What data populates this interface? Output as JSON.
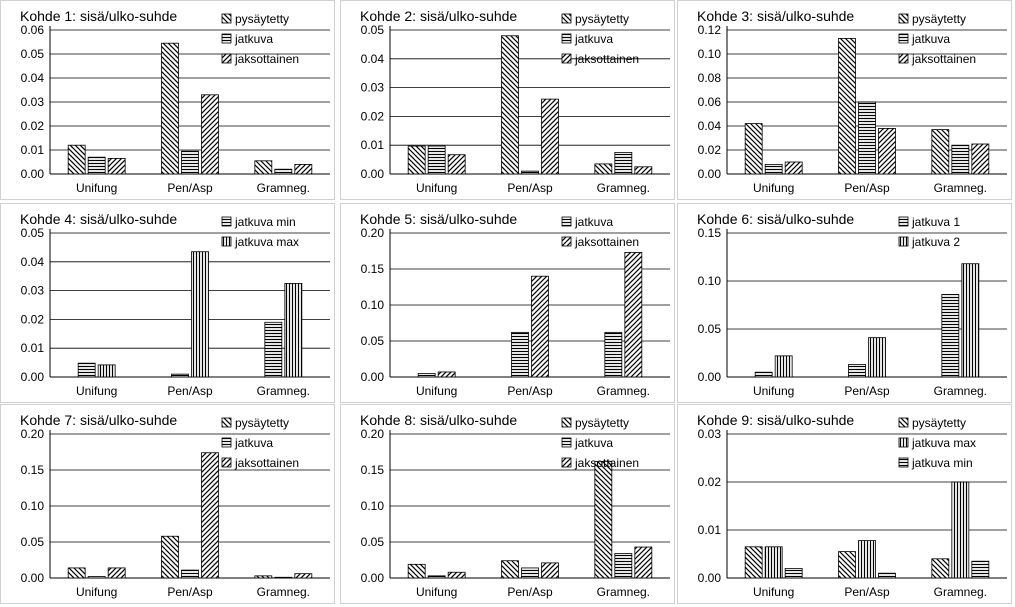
{
  "chart_data": [
    {
      "type": "bar",
      "title": "Kohde 1: sisä/ulko-suhde",
      "categories": [
        "Unifung",
        "Pen/Asp",
        "Gramneg."
      ],
      "ylim": [
        0,
        0.06
      ],
      "yticks": [
        "0.00",
        "0.01",
        "0.02",
        "0.03",
        "0.04",
        "0.05",
        "0.06"
      ],
      "series": [
        {
          "name": "pysäytetty",
          "pattern": "diag-back",
          "values": [
            0.012,
            0.0545,
            0.0055
          ]
        },
        {
          "name": "jatkuva",
          "pattern": "horizontal",
          "values": [
            0.007,
            0.0095,
            0.002
          ]
        },
        {
          "name": "jaksottainen",
          "pattern": "diag-fwd",
          "values": [
            0.0065,
            0.033,
            0.004
          ]
        }
      ],
      "legend": "top-right",
      "grid": true
    },
    {
      "type": "bar",
      "title": "Kohde 2: sisä/ulko-suhde",
      "categories": [
        "Unifung",
        "Pen/Asp",
        "Gramneg."
      ],
      "ylim": [
        0,
        0.05
      ],
      "yticks": [
        "0.00",
        "0.01",
        "0.02",
        "0.03",
        "0.04",
        "0.05"
      ],
      "series": [
        {
          "name": "pysäytetty",
          "pattern": "diag-back",
          "values": [
            0.0097,
            0.048,
            0.0035
          ]
        },
        {
          "name": "jatkuva",
          "pattern": "horizontal",
          "values": [
            0.0097,
            0.001,
            0.0075
          ]
        },
        {
          "name": "jaksottainen",
          "pattern": "diag-fwd",
          "values": [
            0.0067,
            0.026,
            0.0025
          ]
        }
      ],
      "legend": "top-right",
      "grid": true
    },
    {
      "type": "bar",
      "title": "Kohde 3: sisä/ulko-suhde",
      "categories": [
        "Unifung",
        "Pen/Asp",
        "Gramneg."
      ],
      "ylim": [
        0,
        0.12
      ],
      "yticks": [
        "0.00",
        "0.02",
        "0.04",
        "0.06",
        "0.08",
        "0.10",
        "0.12"
      ],
      "series": [
        {
          "name": "pysäytetty",
          "pattern": "diag-back",
          "values": [
            0.042,
            0.113,
            0.037
          ]
        },
        {
          "name": "jatkuva",
          "pattern": "horizontal",
          "values": [
            0.008,
            0.06,
            0.024
          ]
        },
        {
          "name": "jaksottainen",
          "pattern": "diag-fwd",
          "values": [
            0.01,
            0.038,
            0.025
          ]
        }
      ],
      "legend": "top-right",
      "grid": true
    },
    {
      "type": "bar",
      "title": "Kohde 4: sisä/ulko-suhde",
      "categories": [
        "Unifung",
        "Pen/Asp",
        "Gramneg."
      ],
      "ylim": [
        0,
        0.05
      ],
      "yticks": [
        "0.00",
        "0.01",
        "0.02",
        "0.03",
        "0.04",
        "0.05"
      ],
      "series": [
        {
          "name": "jatkuva min",
          "pattern": "horizontal",
          "values": [
            0.0048,
            0.001,
            0.019
          ]
        },
        {
          "name": "jatkuva max",
          "pattern": "vertical",
          "values": [
            0.0042,
            0.0435,
            0.0325
          ]
        }
      ],
      "legend": "top-right",
      "grid": true
    },
    {
      "type": "bar",
      "title": "Kohde 5: sisä/ulko-suhde",
      "categories": [
        "Unifung",
        "Pen/Asp",
        "Gramneg."
      ],
      "ylim": [
        0,
        0.2
      ],
      "yticks": [
        "0.00",
        "0.05",
        "0.10",
        "0.15",
        "0.20"
      ],
      "series": [
        {
          "name": "jatkuva",
          "pattern": "horizontal",
          "values": [
            0.005,
            0.062,
            0.062
          ]
        },
        {
          "name": "jaksottainen",
          "pattern": "diag-fwd",
          "values": [
            0.007,
            0.14,
            0.173
          ]
        }
      ],
      "legend": "top-right",
      "grid": true
    },
    {
      "type": "bar",
      "title": "Kohde 6: sisä/ulko-suhde",
      "categories": [
        "Unifung",
        "Pen/Asp",
        "Gramneg."
      ],
      "ylim": [
        0,
        0.15
      ],
      "yticks": [
        "0.00",
        "0.05",
        "0.10",
        "0.15"
      ],
      "series": [
        {
          "name": "jatkuva 1",
          "pattern": "horizontal",
          "values": [
            0.005,
            0.013,
            0.086
          ]
        },
        {
          "name": "jatkuva 2",
          "pattern": "vertical",
          "values": [
            0.022,
            0.041,
            0.118
          ]
        }
      ],
      "legend": "top-right",
      "grid": true
    },
    {
      "type": "bar",
      "title": "Kohde 7: sisä/ulko-suhde",
      "categories": [
        "Unifung",
        "Pen/Asp",
        "Gramneg."
      ],
      "ylim": [
        0,
        0.2
      ],
      "yticks": [
        "0.00",
        "0.05",
        "0.10",
        "0.15",
        "0.20"
      ],
      "series": [
        {
          "name": "pysäytetty",
          "pattern": "diag-back",
          "values": [
            0.014,
            0.058,
            0.003
          ]
        },
        {
          "name": "jatkuva",
          "pattern": "horizontal",
          "values": [
            0.002,
            0.011,
            0.001
          ]
        },
        {
          "name": "jaksottainen",
          "pattern": "diag-fwd",
          "values": [
            0.014,
            0.174,
            0.006
          ]
        }
      ],
      "legend": "top-right",
      "grid": true
    },
    {
      "type": "bar",
      "title": "Kohde 8: sisä/ulko-suhde",
      "categories": [
        "Unifung",
        "Pen/Asp",
        "Gramneg."
      ],
      "ylim": [
        0,
        0.2
      ],
      "yticks": [
        "0.00",
        "0.05",
        "0.10",
        "0.15",
        "0.20"
      ],
      "series": [
        {
          "name": "pysäytetty",
          "pattern": "diag-back",
          "values": [
            0.019,
            0.024,
            0.162
          ]
        },
        {
          "name": "jatkuva",
          "pattern": "horizontal",
          "values": [
            0.003,
            0.014,
            0.034
          ]
        },
        {
          "name": "jaksottainen",
          "pattern": "diag-fwd",
          "values": [
            0.008,
            0.021,
            0.043
          ]
        }
      ],
      "legend": "top-right",
      "grid": true
    },
    {
      "type": "bar",
      "title": "Kohde 9: sisä/ulko-suhde",
      "categories": [
        "Unifung",
        "Pen/Asp",
        "Gramneg."
      ],
      "ylim": [
        0,
        0.03
      ],
      "yticks": [
        "0.00",
        "0.01",
        "0.02",
        "0.03"
      ],
      "series": [
        {
          "name": "pysäytetty",
          "pattern": "diag-back",
          "values": [
            0.0065,
            0.0055,
            0.004
          ]
        },
        {
          "name": "jatkuva max",
          "pattern": "vertical",
          "values": [
            0.0065,
            0.0078,
            0.02
          ]
        },
        {
          "name": "jatkuva min",
          "pattern": "horizontal",
          "values": [
            0.002,
            0.001,
            0.0035
          ]
        }
      ],
      "legend": "top-right",
      "grid": true
    }
  ]
}
